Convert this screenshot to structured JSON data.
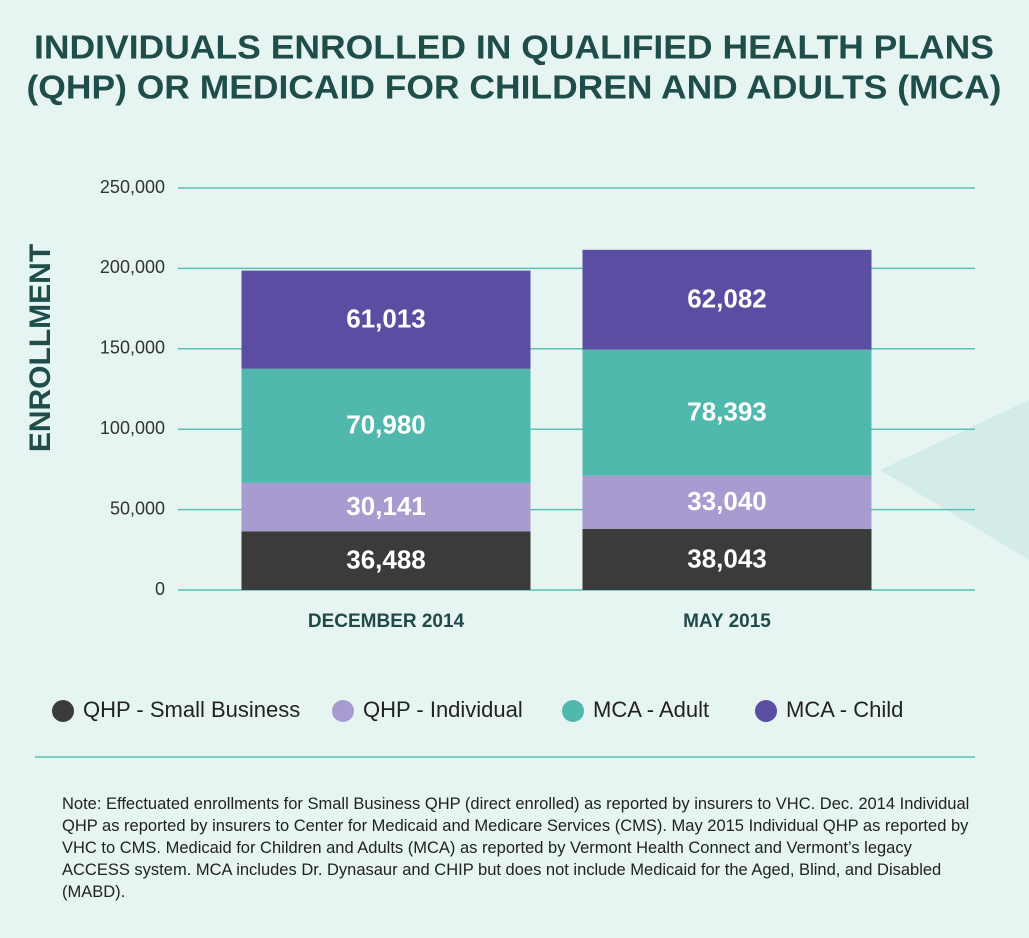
{
  "chart_data": {
    "type": "stacked_bar",
    "title": [
      "INDIVIDUALS ENROLLED IN QUALIFIED HEALTH PLANS",
      "(QHP) OR MEDICAID FOR CHILDREN AND ADULTS (MCA)"
    ],
    "y_label": "ENROLLMENT",
    "categories": [
      "DECEMBER 2014",
      "MAY 2015"
    ],
    "series": [
      {
        "name": "QHP - Small Business",
        "color": "#3b3b3b",
        "values": [
          36488,
          38043
        ],
        "value_labels": [
          "36,488",
          "38,043"
        ]
      },
      {
        "name": "QHP - Individual",
        "color": "#a79bd0",
        "values": [
          30141,
          33040
        ],
        "value_labels": [
          "30,141",
          "33,040"
        ]
      },
      {
        "name": "MCA - Adult",
        "color": "#50b8ad",
        "values": [
          70980,
          78393
        ],
        "value_labels": [
          "70,980",
          "78,393"
        ]
      },
      {
        "name": "MCA - Child",
        "color": "#5b4ea2",
        "values": [
          61013,
          62082
        ],
        "value_labels": [
          "61,013",
          "62,082"
        ]
      }
    ],
    "ylim": [
      0,
      250000
    ],
    "yticks": [
      0,
      {
        "value": 50000,
        "label": "50,000"
      },
      {
        "value": 100000,
        "label": "100,000"
      },
      {
        "value": 150000,
        "label": "150,000"
      },
      {
        "value": 200000,
        "label": "200,000"
      },
      {
        "value": 250000,
        "label": "250,000"
      }
    ],
    "grid": true,
    "legend": "bottom",
    "note": "Note: Effectuated enrollments for Small Business QHP (direct enrolled) as reported by insurers to VHC. Dec. 2014 Individual QHP as reported by insurers to Center for Medicaid and Medicare Services (CMS). May 2015 Individual QHP as reported by VHC to CMS. Medicaid for Children and Adults (MCA) as reported by Vermont Health Connect and Vermont’s legacy ACCESS system. MCA includes Dr. Dynasaur and CHIP but does not include Medicaid for the Aged, Blind, and Disabled (MABD)."
  }
}
